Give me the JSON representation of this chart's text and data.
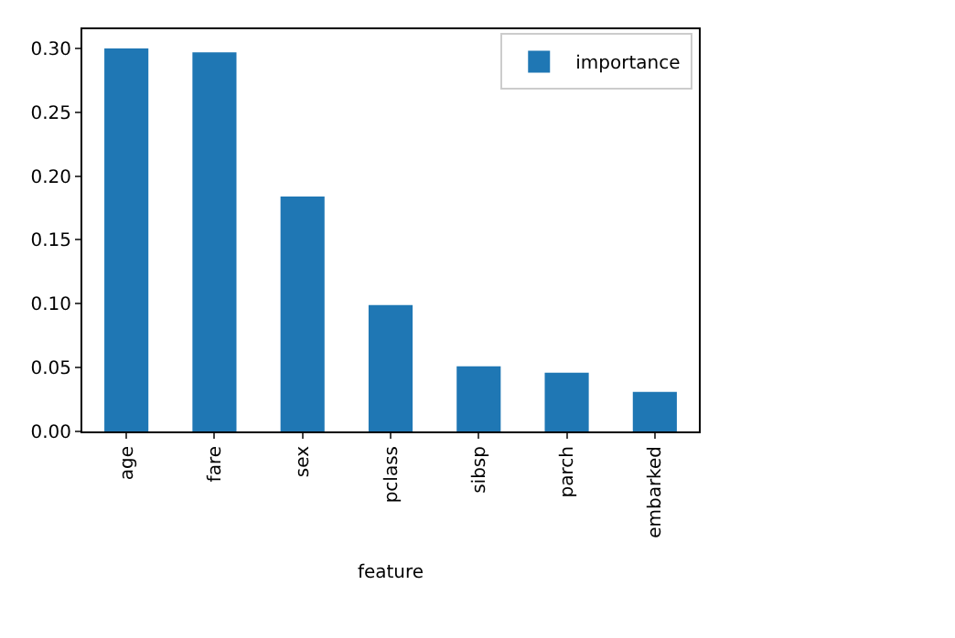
{
  "chart_data": {
    "type": "bar",
    "xlabel": "feature",
    "categories": [
      "age",
      "fare",
      "sex",
      "pclass",
      "sibsp",
      "parch",
      "embarked"
    ],
    "series": [
      {
        "name": "importance",
        "color": "#1f77b4",
        "values": [
          0.3,
          0.297,
          0.184,
          0.099,
          0.051,
          0.046,
          0.031
        ]
      }
    ],
    "ylim": [
      0,
      0.315
    ],
    "yticks": [
      {
        "value": 0,
        "label": "0.00"
      },
      {
        "value": 0.05,
        "label": "0.05"
      },
      {
        "value": 0.1,
        "label": "0.10"
      },
      {
        "value": 0.15,
        "label": "0.15"
      },
      {
        "value": 0.2,
        "label": "0.20"
      },
      {
        "value": 0.25,
        "label": "0.25"
      },
      {
        "value": 0.3,
        "label": "0.30"
      }
    ],
    "legend": "top right"
  }
}
